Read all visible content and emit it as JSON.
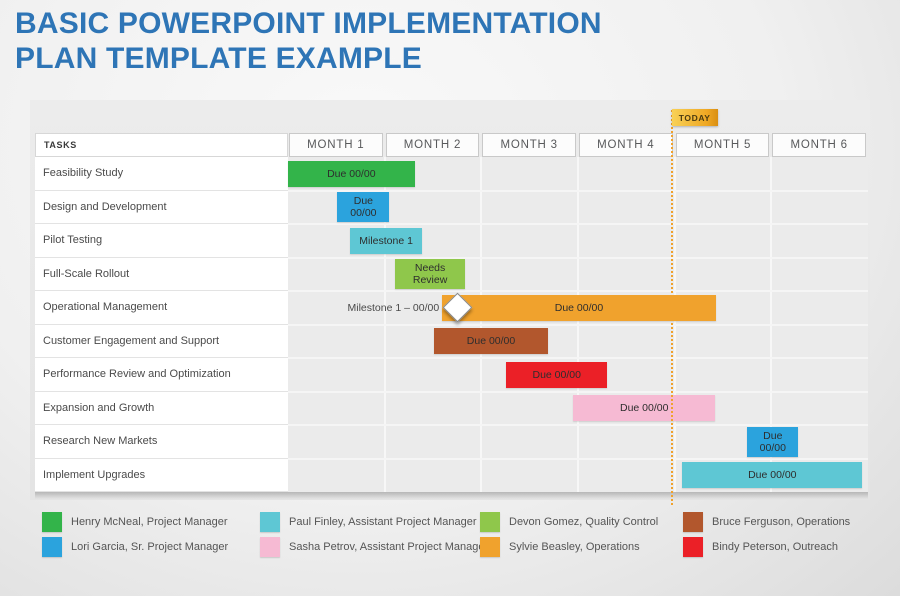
{
  "title": {
    "line1": "BASIC POWERPOINT IMPLEMENTATION",
    "line2": "PLAN TEMPLATE EXAMPLE"
  },
  "today": {
    "label": "TODAY"
  },
  "table": {
    "tasks_header": "TASKS",
    "months": [
      "MONTH 1",
      "MONTH 2",
      "MONTH 3",
      "MONTH 4",
      "MONTH 5",
      "MONTH 6"
    ]
  },
  "chart_data": {
    "type": "gantt",
    "x_unit": "months",
    "xlim": [
      0,
      6
    ],
    "today_at": 3.97,
    "rows": [
      {
        "task": "Feasibility Study",
        "start": 0.0,
        "end": 1.31,
        "label": "Due 00/00",
        "color": "#33B44A",
        "assignee": "Henry McNeal, Project Manager"
      },
      {
        "task": "Design and Development",
        "start": 0.51,
        "end": 1.05,
        "label": "Due\n00/00",
        "two_line": true,
        "color": "#2BA3DD",
        "assignee": "Lori Garcia, Sr. Project Manager"
      },
      {
        "task": "Pilot Testing",
        "start": 0.64,
        "end": 1.39,
        "label": "Milestone 1",
        "color": "#5EC7D4",
        "assignee": "Paul Finley, Assistant Project Manager"
      },
      {
        "task": "Full-Scale Rollout",
        "start": 1.11,
        "end": 1.83,
        "label": "Needs\nReview",
        "two_line": true,
        "color": "#8FC74B",
        "assignee": "Devon Gomez, Quality Control"
      },
      {
        "task": "Operational Management",
        "start": 1.59,
        "end": 4.43,
        "label": "Due 00/00",
        "color": "#F0A22D",
        "assignee": "Sylvie Beasley, Operations",
        "milestone": {
          "label": "Milestone 1 – 00/00",
          "at": 1.75
        }
      },
      {
        "task": "Customer Engagement and Support",
        "start": 1.51,
        "end": 2.69,
        "label": "Due 00/00",
        "color": "#B2572D",
        "assignee": "Bruce Ferguson, Operations"
      },
      {
        "task": "Performance Review and Optimization",
        "start": 2.26,
        "end": 3.3,
        "label": "Due 00/00",
        "color": "#EB2027",
        "assignee": "Bindy Peterson, Outreach"
      },
      {
        "task": "Expansion and Growth",
        "start": 2.95,
        "end": 4.42,
        "label": "Due 00/00",
        "color": "#F6BAD3",
        "assignee": "Sasha Petrov, Assistant Project Manager"
      },
      {
        "task": "Research New Markets",
        "start": 4.75,
        "end": 5.28,
        "label": "Due\n00/00",
        "two_line": true,
        "color": "#2BA3DD",
        "assignee": "Lori Garcia, Sr. Project Manager"
      },
      {
        "task": "Implement Upgrades",
        "start": 4.08,
        "end": 5.94,
        "label": "Due 00/00",
        "color": "#5EC7D4",
        "assignee": "Paul Finley, Assistant Project Manager"
      }
    ]
  },
  "legend": {
    "items": [
      {
        "name": "Henry McNeal, Project Manager",
        "color": "#33B44A"
      },
      {
        "name": "Lori Garcia, Sr. Project Manager",
        "color": "#2BA3DD"
      },
      {
        "name": "Paul Finley, Assistant Project Manager",
        "color": "#5EC7D4"
      },
      {
        "name": "Sasha Petrov, Assistant Project Manager",
        "color": "#F6BAD3"
      },
      {
        "name": "Devon Gomez, Quality Control",
        "color": "#8FC74B"
      },
      {
        "name": "Sylvie Beasley, Operations",
        "color": "#F0A22D"
      },
      {
        "name": "Bruce Ferguson, Operations",
        "color": "#B2572D"
      },
      {
        "name": "Bindy Peterson, Outreach",
        "color": "#EB2027"
      }
    ]
  },
  "colors": {
    "title": "#2E75B6",
    "today_line": "#F0A22D"
  }
}
